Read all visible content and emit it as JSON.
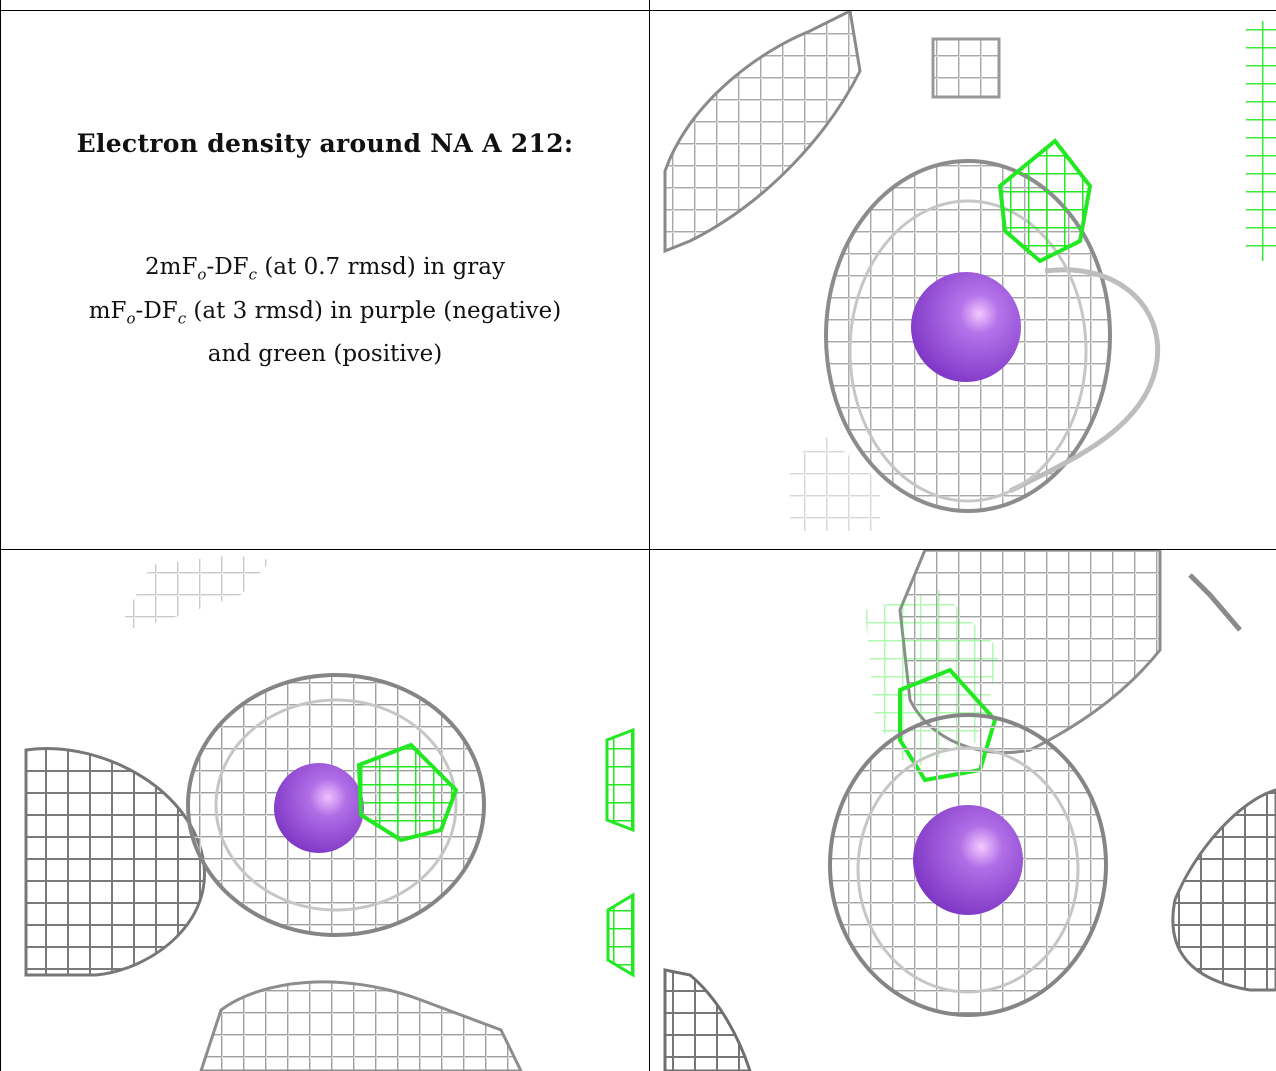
{
  "caption": {
    "title": "Electron density around NA A 212:",
    "line1": "2mFₒ-DF𝒸 (at 0.7 rmsd) in gray",
    "line1_parts": [
      "2mF",
      "o",
      "-DF",
      "c",
      " (at 0.7 rmsd) in gray"
    ],
    "line2_parts": [
      "mF",
      "o",
      "-DF",
      "c",
      " (at 3 rmsd) in purple (negative)"
    ],
    "line3": "and green (positive)"
  },
  "colors": {
    "mesh_gray": "#a8a8a8",
    "mesh_dark": "#6e6e6e",
    "mesh_green": "#22e822",
    "atom_purple": "#9a55d6",
    "border": "#000000"
  },
  "panels": [
    {
      "id": "top-right",
      "view": "density view 1"
    },
    {
      "id": "bottom-left",
      "view": "density view 2"
    },
    {
      "id": "bottom-right",
      "view": "density view 3"
    }
  ]
}
